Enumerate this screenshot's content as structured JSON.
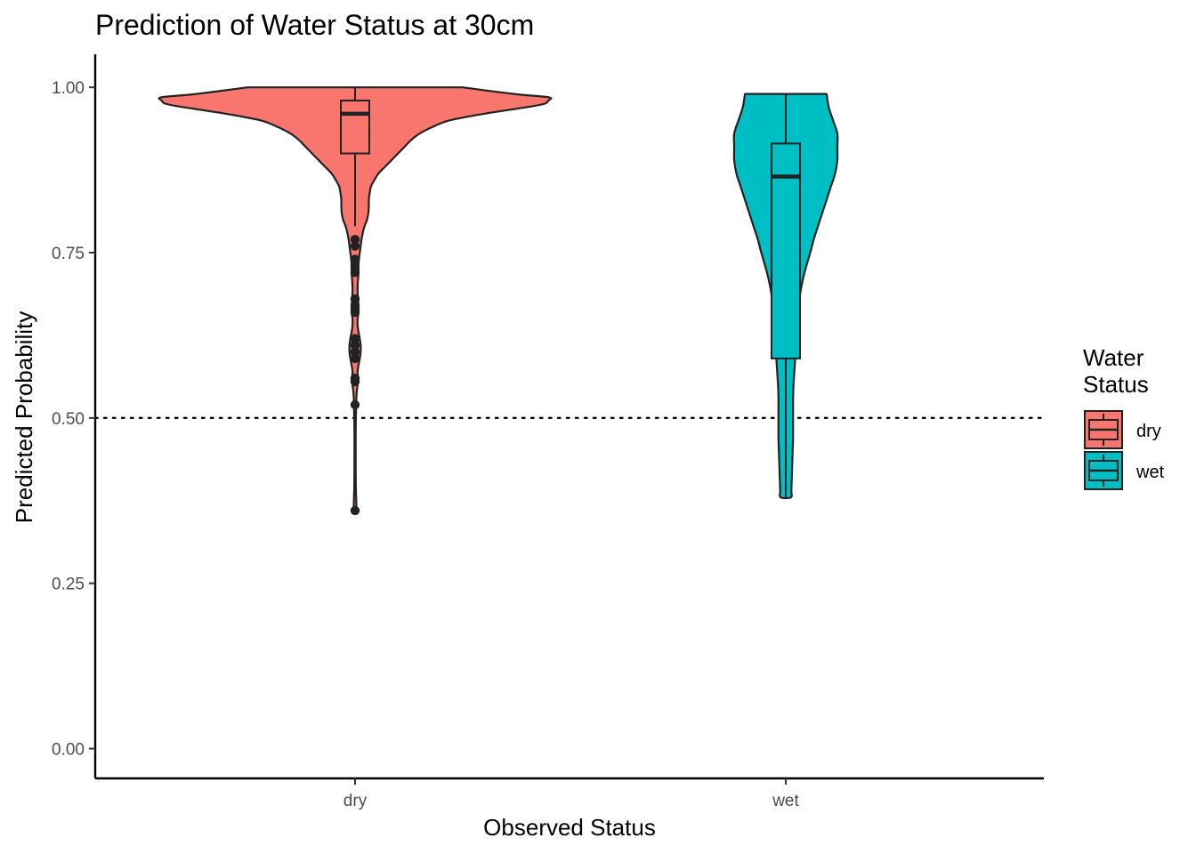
{
  "chart_data": {
    "type": "violin",
    "title": "Prediction of Water Status at 30cm",
    "xlabel": "Observed Status",
    "ylabel": "Predicted Probability",
    "ylim": [
      -0.045,
      1.05
    ],
    "yticks": [
      0.0,
      0.25,
      0.5,
      0.75,
      1.0
    ],
    "ytick_labels": [
      "0.00",
      "0.25",
      "0.50",
      "0.75",
      "1.00"
    ],
    "categories": [
      "dry",
      "wet"
    ],
    "reference_line": {
      "y": 0.5,
      "style": "dotted"
    },
    "grid": false,
    "legend": {
      "title_lines": [
        "Water",
        "Status"
      ],
      "placement": "right",
      "items": [
        {
          "label": "dry",
          "color": "#F8766D"
        },
        {
          "label": "wet",
          "color": "#00BFC4"
        }
      ]
    },
    "series": [
      {
        "name": "dry",
        "color": "#F8766D",
        "violin": [
          [
            1.0,
            0.25
          ],
          [
            0.99,
            0.37
          ],
          [
            0.985,
            0.45
          ],
          [
            0.98,
            0.45
          ],
          [
            0.975,
            0.44
          ],
          [
            0.97,
            0.4
          ],
          [
            0.96,
            0.3
          ],
          [
            0.95,
            0.22
          ],
          [
            0.94,
            0.18
          ],
          [
            0.93,
            0.15
          ],
          [
            0.92,
            0.13
          ],
          [
            0.91,
            0.115
          ],
          [
            0.9,
            0.1
          ],
          [
            0.89,
            0.085
          ],
          [
            0.88,
            0.07
          ],
          [
            0.87,
            0.055
          ],
          [
            0.86,
            0.045
          ],
          [
            0.85,
            0.037
          ],
          [
            0.84,
            0.034
          ],
          [
            0.83,
            0.032
          ],
          [
            0.82,
            0.032
          ],
          [
            0.81,
            0.031
          ],
          [
            0.8,
            0.028
          ],
          [
            0.79,
            0.022
          ],
          [
            0.78,
            0.018
          ],
          [
            0.77,
            0.015
          ],
          [
            0.76,
            0.013
          ],
          [
            0.75,
            0.011
          ],
          [
            0.74,
            0.009
          ],
          [
            0.73,
            0.008
          ],
          [
            0.72,
            0.008
          ],
          [
            0.71,
            0.007
          ],
          [
            0.7,
            0.006
          ],
          [
            0.69,
            0.006
          ],
          [
            0.68,
            0.007
          ],
          [
            0.67,
            0.008
          ],
          [
            0.66,
            0.008
          ],
          [
            0.65,
            0.006
          ],
          [
            0.64,
            0.006
          ],
          [
            0.63,
            0.008
          ],
          [
            0.62,
            0.011
          ],
          [
            0.61,
            0.013
          ],
          [
            0.6,
            0.013
          ],
          [
            0.59,
            0.011
          ],
          [
            0.58,
            0.008
          ],
          [
            0.57,
            0.006
          ],
          [
            0.56,
            0.007
          ],
          [
            0.55,
            0.006
          ],
          [
            0.54,
            0.004
          ],
          [
            0.53,
            0.003
          ],
          [
            0.52,
            0.0025
          ],
          [
            0.5,
            0.002
          ],
          [
            0.48,
            0.0015
          ],
          [
            0.45,
            0.0015
          ],
          [
            0.42,
            0.0015
          ],
          [
            0.39,
            0.002
          ],
          [
            0.37,
            0.003
          ],
          [
            0.36,
            0.002
          ]
        ],
        "box": {
          "q1": 0.9,
          "median": 0.96,
          "q3": 0.98,
          "whisker_low": 0.79,
          "whisker_high": 1.0
        },
        "outliers": [
          0.77,
          0.76,
          0.74,
          0.73,
          0.72,
          0.68,
          0.67,
          0.665,
          0.66,
          0.62,
          0.61,
          0.6,
          0.59,
          0.56,
          0.555,
          0.52,
          0.36
        ]
      },
      {
        "name": "wet",
        "color": "#00BFC4",
        "violin": [
          [
            0.99,
            0.095
          ],
          [
            0.97,
            0.1
          ],
          [
            0.95,
            0.11
          ],
          [
            0.93,
            0.12
          ],
          [
            0.91,
            0.12
          ],
          [
            0.89,
            0.12
          ],
          [
            0.87,
            0.115
          ],
          [
            0.85,
            0.105
          ],
          [
            0.83,
            0.095
          ],
          [
            0.81,
            0.085
          ],
          [
            0.79,
            0.075
          ],
          [
            0.77,
            0.065
          ],
          [
            0.75,
            0.057
          ],
          [
            0.73,
            0.048
          ],
          [
            0.71,
            0.04
          ],
          [
            0.69,
            0.034
          ],
          [
            0.67,
            0.03
          ],
          [
            0.65,
            0.028
          ],
          [
            0.63,
            0.026
          ],
          [
            0.61,
            0.024
          ],
          [
            0.59,
            0.022
          ],
          [
            0.57,
            0.02
          ],
          [
            0.55,
            0.018
          ],
          [
            0.53,
            0.017
          ],
          [
            0.51,
            0.017
          ],
          [
            0.49,
            0.017
          ],
          [
            0.47,
            0.017
          ],
          [
            0.45,
            0.016
          ],
          [
            0.43,
            0.015
          ],
          [
            0.41,
            0.014
          ],
          [
            0.39,
            0.013
          ],
          [
            0.38,
            0.012
          ]
        ],
        "box": {
          "q1": 0.59,
          "median": 0.865,
          "q3": 0.915,
          "whisker_low": 0.38,
          "whisker_high": 0.99
        },
        "outliers": []
      }
    ]
  }
}
